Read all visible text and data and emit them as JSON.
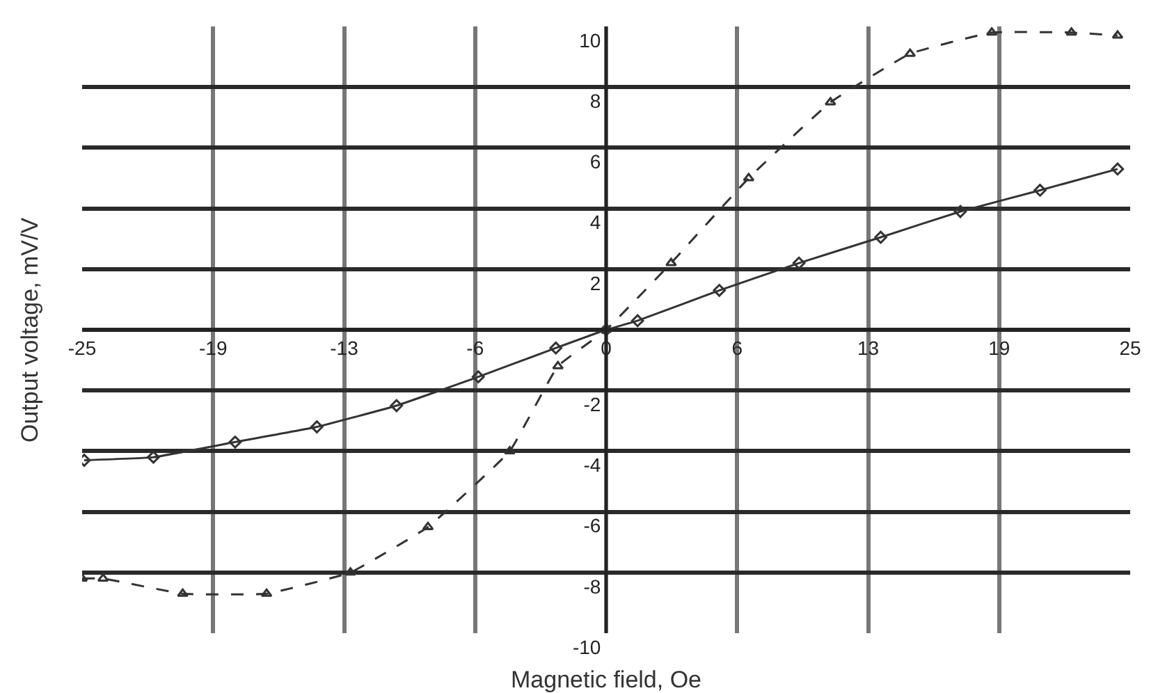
{
  "chart_data": {
    "type": "line",
    "xlabel": "Magnetic field, Oe",
    "ylabel": "Output voltage, mV/V",
    "series": [
      {
        "color": "#333333",
        "line_style": "dashed",
        "marker": "triangle",
        "x": [
          -25,
          -24.0,
          -20.2,
          -16.2,
          -12.2,
          -8.5,
          -4.6,
          -2.3,
          0,
          3.1,
          6.8,
          10.7,
          14.5,
          18.4,
          22.2,
          24.4
        ],
        "values": [
          -8.2,
          -8.2,
          -8.7,
          -8.7,
          -8.0,
          -6.5,
          -4.0,
          -1.2,
          0,
          2.2,
          5.0,
          7.5,
          9.1,
          9.8,
          9.8,
          9.7
        ]
      },
      {
        "color": "#333333",
        "line_style": "solid",
        "marker": "diamond",
        "x": [
          -24.9,
          -21.6,
          -17.7,
          -13.8,
          -10.0,
          -6.1,
          -2.4,
          0,
          1.5,
          5.4,
          9.2,
          13.1,
          16.9,
          20.7,
          24.4
        ],
        "values": [
          -4.3,
          -4.2,
          -3.7,
          -3.2,
          -2.5,
          -1.55,
          -0.6,
          0,
          0.3,
          1.3,
          2.2,
          3.05,
          3.9,
          4.6,
          5.3
        ]
      }
    ],
    "xlim": [
      -25,
      25
    ],
    "ylim": [
      -10,
      10
    ],
    "xticks": [
      -25,
      {
        "value": -18.75,
        "label": "-19"
      },
      {
        "value": -12.5,
        "label": "-13"
      },
      {
        "value": -6.25,
        "label": "-6"
      },
      0,
      {
        "value": 6.25,
        "label": "6"
      },
      {
        "value": 12.5,
        "label": "13"
      },
      {
        "value": 18.75,
        "label": "19"
      },
      25
    ],
    "yticks": [
      -10,
      -8,
      -6,
      -4,
      -2,
      {
        "value": 0,
        "label": null
      },
      2,
      4,
      6,
      8,
      10
    ],
    "grid": true,
    "legend": false
  }
}
